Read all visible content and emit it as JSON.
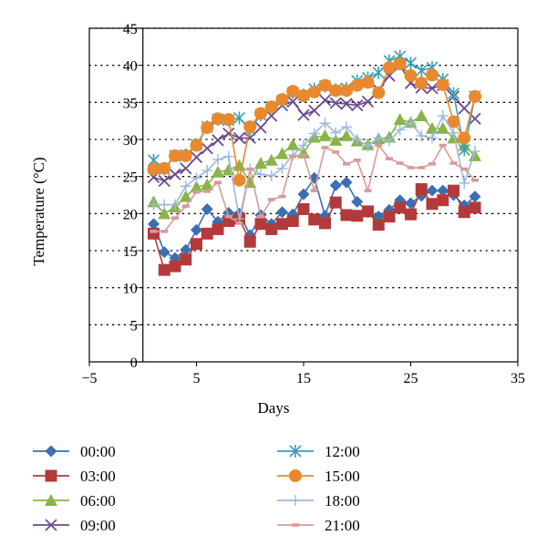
{
  "chart_data": {
    "type": "line",
    "xlabel": "Days",
    "ylabel": "Temperature (°C)",
    "xlim": [
      -5,
      35
    ],
    "ylim": [
      0,
      45
    ],
    "xticks": [
      "−5",
      "5",
      "15",
      "25",
      "35"
    ],
    "xtick_values": [
      -5,
      5,
      15,
      25,
      35
    ],
    "yticks": [
      "0",
      "5",
      "10",
      "15",
      "20",
      "25",
      "30",
      "35",
      "40",
      "45"
    ],
    "ytick_values": [
      0,
      5,
      10,
      15,
      20,
      25,
      30,
      35,
      40,
      45
    ],
    "grid": "horizontal dotted",
    "legend_position": "bottom",
    "x": [
      1,
      2,
      3,
      4,
      5,
      6,
      7,
      8,
      9,
      10,
      11,
      12,
      13,
      14,
      15,
      16,
      17,
      18,
      19,
      20,
      21,
      22,
      23,
      24,
      25,
      26,
      27,
      28,
      29,
      30,
      31
    ],
    "series": [
      {
        "name": "00:00",
        "marker": "diamond",
        "color": "#3a6fb0",
        "line": "#3a6fb0",
        "values": [
          18.6,
          14.8,
          14.0,
          15.1,
          17.8,
          20.6,
          18.9,
          20.1,
          20.0,
          17.1,
          19.8,
          18.6,
          20.2,
          19.9,
          22.6,
          24.8,
          19.7,
          23.8,
          24.2,
          21.6,
          20.2,
          19.6,
          20.5,
          21.8,
          21.4,
          22.4,
          23.1,
          23.1,
          22.5,
          21.1,
          22.3
        ]
      },
      {
        "name": "03:00",
        "marker": "square",
        "color": "#b33a3a",
        "line": "#b33a3a",
        "values": [
          17.3,
          12.4,
          12.9,
          13.8,
          15.9,
          17.3,
          17.9,
          19.0,
          19.3,
          16.2,
          18.6,
          17.9,
          18.6,
          19.0,
          20.6,
          19.2,
          18.7,
          21.5,
          19.8,
          19.7,
          20.3,
          18.5,
          19.6,
          20.8,
          19.9,
          23.3,
          21.3,
          21.8,
          23.1,
          20.2,
          20.8
        ]
      },
      {
        "name": "06:00",
        "marker": "triangle",
        "color": "#8ab34a",
        "line": "#8ab34a",
        "values": [
          21.6,
          20.0,
          20.9,
          22.3,
          23.6,
          23.9,
          25.6,
          25.9,
          26.5,
          24.2,
          26.8,
          27.2,
          28.1,
          29.3,
          28.2,
          30.3,
          30.5,
          29.9,
          30.5,
          29.8,
          29.3,
          30.1,
          30.3,
          32.7,
          32.3,
          33.2,
          31.5,
          31.5,
          30.2,
          29.2,
          27.8
        ]
      },
      {
        "name": "09:00",
        "marker": "x",
        "color": "#6b4b8f",
        "line": "#6b4b8f",
        "values": [
          24.9,
          24.4,
          25.3,
          26.1,
          27.6,
          28.8,
          29.9,
          30.8,
          30.2,
          30.2,
          31.6,
          33.2,
          34.6,
          35.1,
          33.3,
          33.9,
          35.3,
          34.9,
          34.8,
          34.6,
          35.1,
          36.7,
          38.6,
          40.0,
          37.6,
          37.0,
          36.9,
          37.3,
          35.8,
          34.2,
          32.8
        ]
      },
      {
        "name": "12:00",
        "marker": "star",
        "color": "#3a9fb5",
        "line": "#3a9fb5",
        "values": [
          27.2,
          26.0,
          27.8,
          27.9,
          29.3,
          31.7,
          32.7,
          32.6,
          32.9,
          31.3,
          33.3,
          34.4,
          35.2,
          36.3,
          36.0,
          36.8,
          37.2,
          36.7,
          36.9,
          37.9,
          38.3,
          39.0,
          40.6,
          41.2,
          40.3,
          39.3,
          39.7,
          38.1,
          36.2,
          28.6,
          35.8
        ]
      },
      {
        "name": "15:00",
        "marker": "circle",
        "color": "#e8892e",
        "line": "#e8892e",
        "values": [
          26.0,
          26.1,
          27.8,
          27.8,
          29.2,
          31.6,
          32.8,
          32.7,
          24.5,
          31.7,
          33.5,
          34.4,
          35.4,
          36.5,
          35.9,
          36.4,
          37.3,
          36.6,
          36.6,
          37.3,
          37.7,
          36.3,
          39.7,
          40.2,
          38.6,
          37.6,
          38.7,
          37.4,
          32.4,
          30.2,
          35.8
        ]
      },
      {
        "name": "18:00",
        "marker": "plus",
        "color": "#9db8dd",
        "line": "#9db8dd",
        "values": [
          21.2,
          21.2,
          21.2,
          23.7,
          24.8,
          25.8,
          27.3,
          27.7,
          19.3,
          26.0,
          25.3,
          25.1,
          26.1,
          27.9,
          29.2,
          30.8,
          32.2,
          30.9,
          31.7,
          30.0,
          29.1,
          30.2,
          29.8,
          31.3,
          32.2,
          30.5,
          30.2,
          33.2,
          30.9,
          24.1,
          28.4
        ]
      },
      {
        "name": "21:00",
        "marker": "dash",
        "color": "#d89a9a",
        "line": "#d89a9a",
        "values": [
          17.6,
          17.6,
          19.4,
          21.0,
          22.9,
          23.0,
          24.2,
          19.6,
          18.7,
          26.0,
          19.6,
          21.9,
          22.3,
          27.7,
          27.9,
          23.1,
          28.9,
          28.3,
          26.7,
          27.2,
          23.1,
          29.2,
          27.4,
          26.8,
          26.2,
          26.2,
          26.7,
          29.2,
          26.8,
          26.0,
          24.5
        ]
      }
    ]
  }
}
